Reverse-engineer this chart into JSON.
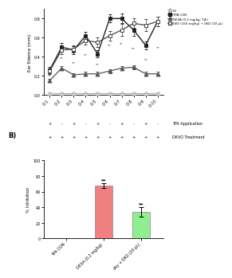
{
  "top_panel": {
    "x_labels": [
      "D-1",
      "D-2",
      "D-3",
      "D-4",
      "D-5",
      "D-6",
      "D-7",
      "D-8",
      "D-9",
      "D-10"
    ],
    "tpa_app": [
      "+",
      "-",
      "+",
      "-",
      "+",
      "-",
      "+",
      "-",
      "+",
      "-"
    ],
    "dkvo_treat": [
      "+",
      "+",
      "+",
      "+",
      "+",
      "+",
      "+",
      "+",
      "+",
      "+"
    ],
    "vc": [
      0.02,
      0.02,
      0.02,
      0.02,
      0.02,
      0.02,
      0.02,
      0.02,
      0.02,
      0.02
    ],
    "vc_err": [
      0.005,
      0.005,
      0.005,
      0.005,
      0.005,
      0.005,
      0.005,
      0.005,
      0.005,
      0.005
    ],
    "tpa": [
      0.26,
      0.5,
      0.47,
      0.62,
      0.43,
      0.8,
      0.8,
      0.68,
      0.52,
      0.77
    ],
    "tpa_err": [
      0.03,
      0.04,
      0.04,
      0.04,
      0.04,
      0.04,
      0.05,
      0.06,
      0.04,
      0.05
    ],
    "dexa": [
      0.15,
      0.28,
      0.21,
      0.22,
      0.22,
      0.25,
      0.28,
      0.29,
      0.22,
      0.22
    ],
    "dexa_err": [
      0.02,
      0.02,
      0.02,
      0.02,
      0.02,
      0.02,
      0.02,
      0.02,
      0.02,
      0.02
    ],
    "dkv": [
      0.25,
      0.47,
      0.48,
      0.57,
      0.55,
      0.62,
      0.68,
      0.75,
      0.73,
      0.77
    ],
    "dkv_err": [
      0.03,
      0.04,
      0.04,
      0.04,
      0.05,
      0.05,
      0.06,
      0.05,
      0.06,
      0.05
    ],
    "ylabel": "Ear Edema (mm)",
    "ylim": [
      0.0,
      0.9
    ],
    "yticks": [
      0.0,
      0.2,
      0.4,
      0.6,
      0.8
    ],
    "legend_labels": [
      "VC",
      "TPA CON",
      "DEXA (0.2 mg/kg; T.A.)",
      "DKV (150 mg/kg) + DKO (20 μL)"
    ],
    "vc_color": "#aaaaaa",
    "tpa_color": "#222222",
    "dexa_color": "#555555",
    "dkv_color": "#444444"
  },
  "bottom_panel": {
    "categories": [
      "TPA CON",
      "DEXA (0.2 mg/kg)",
      "dky + DKO (20 μL)"
    ],
    "values": [
      0,
      68,
      34
    ],
    "errors": [
      0,
      3,
      6
    ],
    "bar_colors": [
      "#ffffff",
      "#f08080",
      "#90ee90"
    ],
    "ylabel": "% Inhibition",
    "ylim": [
      0,
      100
    ],
    "yticks": [
      0,
      20,
      40,
      60,
      80,
      100
    ],
    "sig_labels": [
      "",
      "**",
      "**"
    ]
  }
}
